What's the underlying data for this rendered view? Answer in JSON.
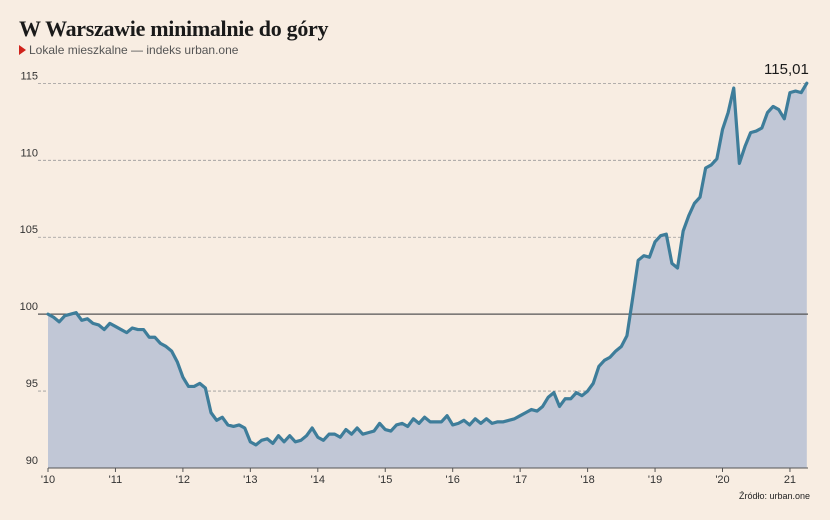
{
  "title": "W Warszawie minimalnie do góry",
  "subtitle": "Lokale mieszkalne — indeks urban.one",
  "source": "Źródło: urban.one",
  "colors": {
    "line": "#3e7d9a",
    "area": "#c1c7d6",
    "background": "#f8ede2",
    "marker": "#d0221b"
  },
  "chart_data": {
    "type": "area",
    "title": "W Warszawie minimalnie do góry",
    "subtitle": "Lokale mieszkalne — indeks urban.one",
    "ylim": [
      90,
      116
    ],
    "yticks": [
      90,
      95,
      100,
      105,
      110,
      115
    ],
    "xticks": [
      "'10",
      "'11",
      "'12",
      "'13",
      "'14",
      "'15",
      "'16",
      "'17",
      "'18",
      "'19",
      "'20",
      "21"
    ],
    "reference_line": 100,
    "end_label": "115,01",
    "grid": "horizontal dashed",
    "series": [
      {
        "start": "2010-01",
        "frequency": "monthly",
        "values": [
          100.0,
          99.8,
          99.5,
          99.9,
          100.0,
          100.1,
          99.6,
          99.7,
          99.4,
          99.3,
          99.0,
          99.4,
          99.2,
          99.0,
          98.8,
          99.1,
          99.0,
          99.0,
          98.5,
          98.5,
          98.1,
          97.9,
          97.6,
          96.9,
          95.9,
          95.3,
          95.3,
          95.5,
          95.2,
          93.6,
          93.1,
          93.3,
          92.8,
          92.7,
          92.8,
          92.6,
          91.7,
          91.5,
          91.8,
          91.9,
          91.6,
          92.1,
          91.7,
          92.1,
          91.7,
          91.8,
          92.1,
          92.6,
          92.0,
          91.8,
          92.2,
          92.2,
          92.0,
          92.5,
          92.2,
          92.6,
          92.2,
          92.3,
          92.4,
          92.9,
          92.5,
          92.4,
          92.8,
          92.9,
          92.7,
          93.2,
          92.9,
          93.3,
          93.0,
          93.0,
          93.0,
          93.4,
          92.8,
          92.9,
          93.1,
          92.8,
          93.2,
          92.9,
          93.2,
          92.9,
          93.0,
          93.0,
          93.1,
          93.2,
          93.4,
          93.6,
          93.8,
          93.7,
          94.0,
          94.6,
          94.9,
          94.0,
          94.5,
          94.5,
          94.9,
          94.7,
          95.0,
          95.5,
          96.6,
          97.0,
          97.2,
          97.6,
          97.9,
          98.6,
          101.0,
          103.5,
          103.8,
          103.7,
          104.7,
          105.1,
          105.2,
          103.3,
          103.0,
          105.4,
          106.4,
          107.2,
          107.6,
          109.5,
          109.7,
          110.1,
          112.0,
          113.1,
          114.7,
          109.8,
          110.9,
          111.8,
          111.9,
          112.1,
          113.1,
          113.5,
          113.3,
          112.7,
          114.4,
          114.5,
          114.4,
          115.01
        ]
      }
    ]
  }
}
